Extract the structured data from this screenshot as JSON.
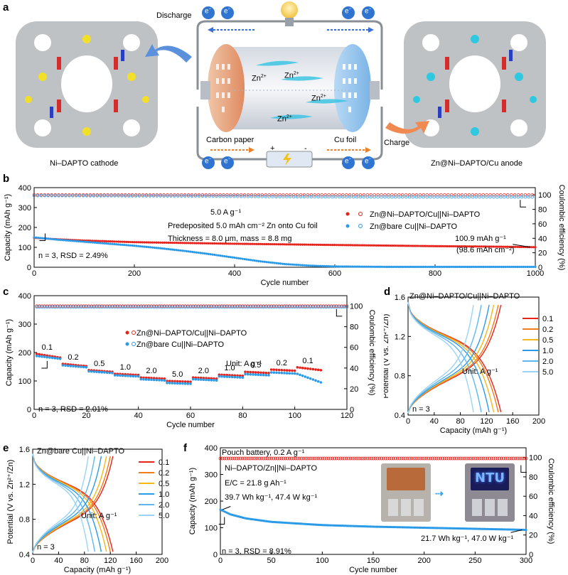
{
  "panel_a": {
    "panel_letter": "a",
    "left_label": "Ni–DAPTO cathode",
    "right_label": "Zn@Ni–DAPTO/Cu anode",
    "discharge_label": "Discharge",
    "charge_label": "Charge",
    "carbon_paper_label": "Carbon paper",
    "cu_foil_label": "Cu foil",
    "ion_label": "Zn",
    "ion_charge": "2+",
    "electron": "e",
    "electron_sup": "−",
    "plus": "+",
    "minus": "-"
  },
  "chart_data": [
    {
      "id": "b",
      "panel_letter": "b",
      "type": "scatter",
      "xlabel": "Cycle number",
      "ylabel": "Capacity (mAh g⁻¹)",
      "y2label": "Coulombic efficiency (%)",
      "xlim": [
        0,
        1000
      ],
      "ylim": [
        0,
        400
      ],
      "y2lim": [
        0,
        110
      ],
      "xticks": [
        0,
        200,
        400,
        600,
        800,
        1000
      ],
      "yticks": [
        0,
        100,
        200,
        300,
        400
      ],
      "y2ticks": [
        0,
        20,
        40,
        60,
        80,
        100
      ],
      "annotations": [
        "5.0 A g⁻¹",
        "Predeposited 5.0 mAh cm⁻² Zn onto Cu foil",
        "Thickness = 8.0 μm, mass = 8.8 mg",
        "100.9 mAh g⁻¹",
        "(98.6 mAh cm⁻²)",
        "n = 3, RSD = 2.49%"
      ],
      "series": [
        {
          "name": "Zn@Ni–DAPTO/Cu||Ni–DAPTO",
          "kind": "capacity",
          "color": "#e8231d",
          "x": [
            0,
            50,
            100,
            200,
            300,
            400,
            500,
            600,
            700,
            800,
            900,
            1000
          ],
          "y": [
            148,
            140,
            134,
            126,
            122,
            118,
            115,
            112,
            109,
            106,
            104,
            100.9
          ]
        },
        {
          "name": "Zn@Ni–DAPTO/Cu||Ni–DAPTO",
          "kind": "ce",
          "color": "#e8231d",
          "x": [
            0,
            1000
          ],
          "y": [
            100,
            100
          ]
        },
        {
          "name": "Zn@bare Cu||Ni–DAPTO",
          "kind": "capacity",
          "color": "#2b9be8",
          "x": [
            0,
            50,
            100,
            150,
            200,
            250,
            300,
            350,
            400,
            450,
            500,
            550,
            600,
            700,
            800,
            900,
            1000
          ],
          "y": [
            150,
            138,
            128,
            118,
            108,
            96,
            82,
            66,
            48,
            30,
            16,
            8,
            4,
            2,
            2,
            2,
            2
          ]
        },
        {
          "name": "Zn@bare Cu||Ni–DAPTO",
          "kind": "ce",
          "color": "#2b9be8",
          "x": [
            0,
            300,
            500,
            700,
            1000
          ],
          "y": [
            99,
            98.5,
            97.5,
            97,
            97
          ]
        }
      ]
    },
    {
      "id": "c",
      "panel_letter": "c",
      "type": "scatter",
      "xlabel": "Cycle number",
      "ylabel": "Capacity (mAh g⁻¹)",
      "y2label": "Coulombic efficiency (%)",
      "xlim": [
        0,
        120
      ],
      "ylim": [
        0,
        400
      ],
      "y2lim": [
        0,
        110
      ],
      "xticks": [
        0,
        20,
        40,
        60,
        80,
        100,
        120
      ],
      "yticks": [
        0,
        100,
        200,
        300,
        400
      ],
      "y2ticks": [
        0,
        20,
        40,
        60,
        80,
        100
      ],
      "annotations": [
        "Unit: A g⁻¹",
        "n = 3, RSD = 2.01%"
      ],
      "rate_labels": [
        "0.1",
        "0.2",
        "0.5",
        "1.0",
        "2.0",
        "5.0",
        "2.0",
        "1.0",
        "0.5",
        "0.2",
        "0.1"
      ],
      "segments": {
        "red": [
          [
            195,
            182
          ],
          [
            160,
            152
          ],
          [
            138,
            132
          ],
          [
            125,
            121
          ],
          [
            112,
            108
          ],
          [
            100,
            97
          ],
          [
            112,
            108
          ],
          [
            122,
            118
          ],
          [
            132,
            128
          ],
          [
            140,
            136
          ],
          [
            148,
            138
          ]
        ],
        "blue": [
          [
            188,
            178
          ],
          [
            155,
            148
          ],
          [
            134,
            128
          ],
          [
            120,
            116
          ],
          [
            106,
            102
          ],
          [
            93,
            90
          ],
          [
            106,
            102
          ],
          [
            116,
            112
          ],
          [
            124,
            120
          ],
          [
            130,
            126
          ],
          [
            125,
            95
          ]
        ]
      },
      "series": [
        {
          "name": "Zn@Ni–DAPTO/Cu||Ni–DAPTO",
          "color": "#e8231d"
        },
        {
          "name": "Zn@bare Cu||Ni–DAPTO",
          "color": "#2b9be8"
        }
      ],
      "ce": {
        "red": 100,
        "blue": 99
      }
    },
    {
      "id": "d",
      "panel_letter": "d",
      "type": "line",
      "title": "Zn@Ni–DAPTO/Cu||Ni–DAPTO",
      "xlabel": "Capacity (mAh g⁻¹)",
      "ylabel": "Potential (V vs. Zn²⁺/Zn)",
      "xlim": [
        0,
        200
      ],
      "ylim": [
        0.4,
        1.6
      ],
      "xticks": [
        0,
        40,
        80,
        120,
        160,
        200
      ],
      "yticks": [
        0.4,
        0.8,
        1.2,
        1.6
      ],
      "annotations": [
        "Unit: A g⁻¹",
        "n = 3"
      ],
      "series": [
        {
          "name": "0.1",
          "color": "#e8231d",
          "capacity": 142
        },
        {
          "name": "0.2",
          "color": "#f07c1a",
          "capacity": 138
        },
        {
          "name": "0.5",
          "color": "#f0b81a",
          "capacity": 131
        },
        {
          "name": "1.0",
          "color": "#2b9be8",
          "capacity": 124
        },
        {
          "name": "2.0",
          "color": "#5eb8ee",
          "capacity": 112
        },
        {
          "name": "5.0",
          "color": "#9ad3f5",
          "capacity": 100
        }
      ]
    },
    {
      "id": "e",
      "panel_letter": "e",
      "type": "line",
      "title": "Zn@bare Cu||Ni–DAPTO",
      "xlabel": "Capacity (mAh g⁻¹)",
      "ylabel": "Potential (V vs. Zn²⁺/Zn)",
      "xlim": [
        0,
        200
      ],
      "ylim": [
        0.4,
        1.6
      ],
      "xticks": [
        0,
        40,
        80,
        120,
        160,
        200
      ],
      "yticks": [
        0.4,
        0.8,
        1.2,
        1.6
      ],
      "annotations": [
        "Unit: A g⁻¹",
        "n = 3"
      ],
      "series": [
        {
          "name": "0.1",
          "color": "#e8231d",
          "capacity": 124
        },
        {
          "name": "0.2",
          "color": "#f07c1a",
          "capacity": 120
        },
        {
          "name": "0.5",
          "color": "#f0b81a",
          "capacity": 114
        },
        {
          "name": "1.0",
          "color": "#2b9be8",
          "capacity": 106
        },
        {
          "name": "2.0",
          "color": "#5eb8ee",
          "capacity": 96
        },
        {
          "name": "5.0",
          "color": "#9ad3f5",
          "capacity": 86
        }
      ]
    },
    {
      "id": "f",
      "panel_letter": "f",
      "type": "scatter",
      "xlabel": "Cycle number",
      "ylabel": "Capacity (mAh g⁻¹)",
      "y2label": "Coulombic efficiency (%)",
      "xlim": [
        0,
        300
      ],
      "ylim": [
        0,
        400
      ],
      "y2lim": [
        0,
        110
      ],
      "xticks": [
        0,
        50,
        100,
        150,
        200,
        250,
        300
      ],
      "yticks": [
        0,
        100,
        200,
        300,
        400
      ],
      "y2ticks": [
        0,
        20,
        40,
        60,
        80,
        100
      ],
      "annotations": [
        "Pouch battery, 0.2 A g⁻¹",
        "Ni–DAPTO/Zn||Ni–DAPTO",
        "E/C = 21.8 g Ah⁻¹",
        "39.7 Wh kg⁻¹, 47.4 W kg⁻¹",
        "21.7 Wh kg⁻¹, 47.0 W kg⁻¹",
        "n = 3, RSD = 8.91%"
      ],
      "photo_text": "NTU",
      "series": [
        {
          "name": "capacity",
          "color": "#2b9be8",
          "x": [
            0,
            10,
            25,
            50,
            100,
            150,
            200,
            250,
            300
          ],
          "y": [
            168,
            150,
            135,
            122,
            110,
            104,
            100,
            96,
            92
          ]
        },
        {
          "name": "ce",
          "color": "#e8231d",
          "x": [
            0,
            300
          ],
          "y": [
            99,
            99
          ]
        }
      ]
    }
  ]
}
